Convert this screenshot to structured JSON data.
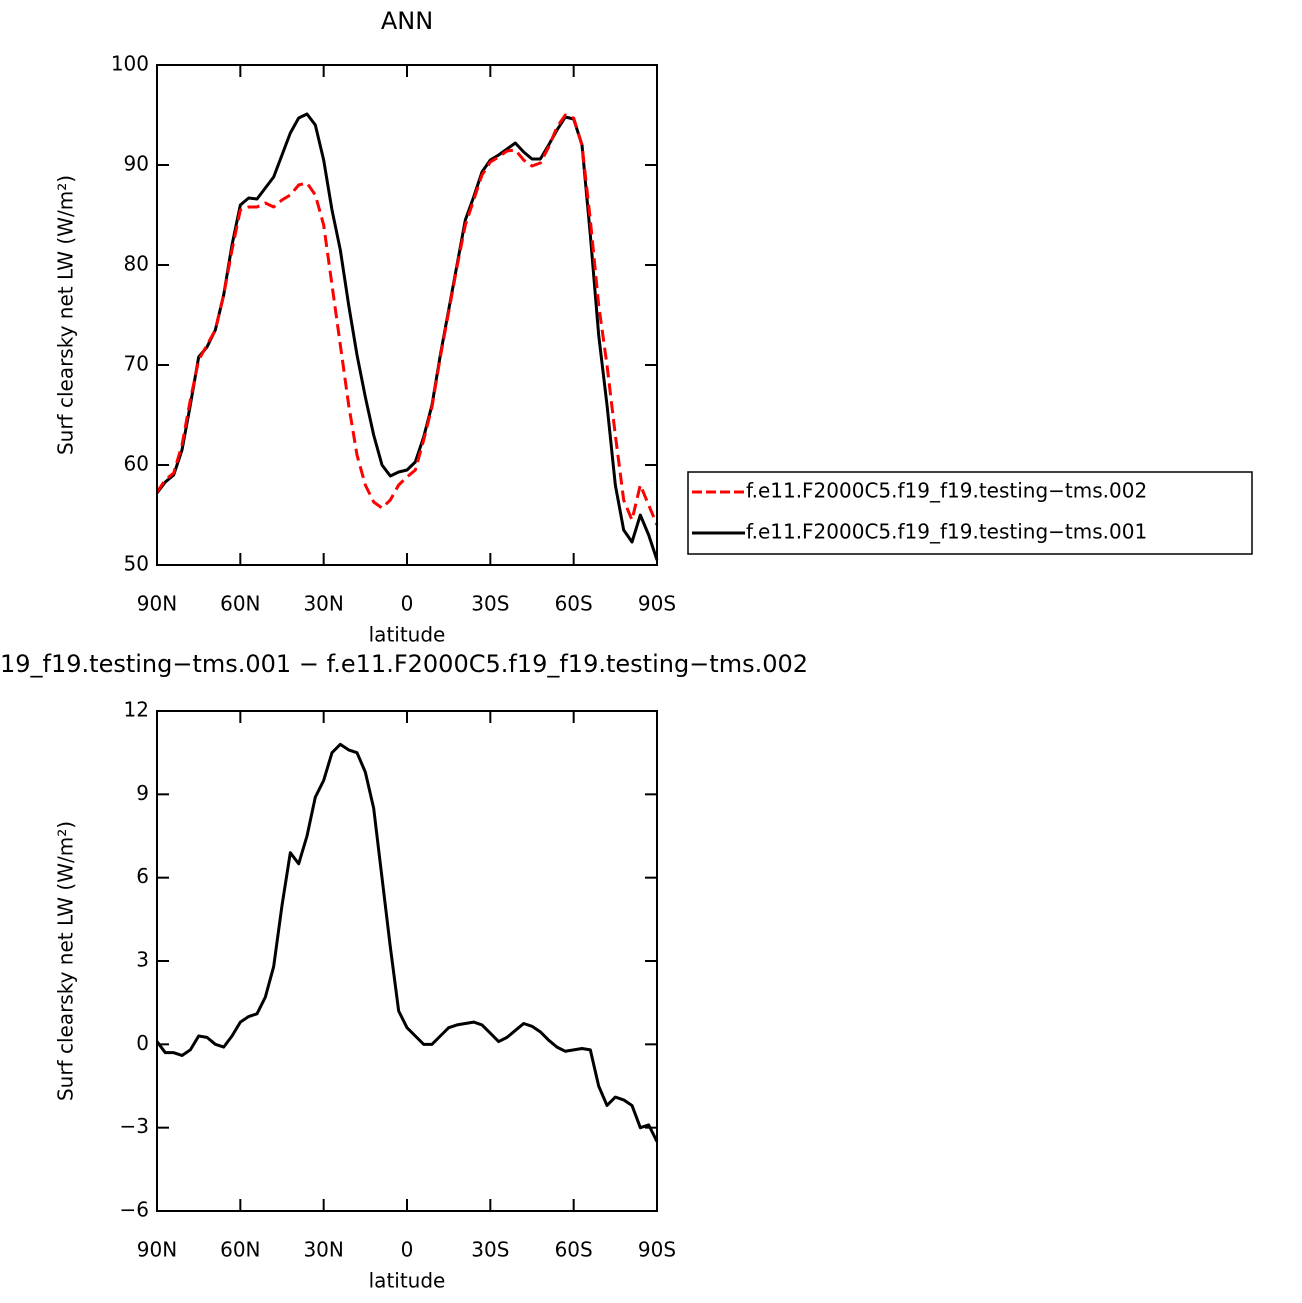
{
  "chart_data": [
    {
      "type": "line",
      "title": "ANN",
      "x": [
        90,
        87,
        84,
        81,
        78,
        75,
        72,
        69,
        66,
        63,
        60,
        57,
        54,
        51,
        48,
        45,
        42,
        39,
        36,
        33,
        30,
        27,
        24,
        21,
        18,
        15,
        12,
        9,
        6,
        3,
        0,
        -3,
        -6,
        -9,
        -12,
        -15,
        -18,
        -21,
        -24,
        -27,
        -30,
        -33,
        -36,
        -39,
        -42,
        -45,
        -48,
        -51,
        -54,
        -57,
        -60,
        -63,
        -66,
        -69,
        -72,
        -75,
        -78,
        -81,
        -84,
        -87,
        -90
      ],
      "series": [
        {
          "name": "f.e11.F2000C5.f19_f19.testing−tms.002",
          "color": "#ff0000",
          "dash": true,
          "values": [
            57.3,
            58.5,
            59.2,
            62,
            66.5,
            70.5,
            72,
            73.5,
            77,
            81.5,
            85.5,
            85.8,
            85.8,
            86.2,
            85.8,
            86.5,
            87,
            88,
            88.2,
            87,
            84,
            78,
            72,
            66,
            61,
            58,
            56.3,
            55.7,
            56.5,
            58,
            58.8,
            59.5,
            62.5,
            65.8,
            70.8,
            75.3,
            79.8,
            84,
            86.5,
            89,
            90.3,
            90.8,
            91.4,
            91.5,
            90.5,
            89.9,
            90.2,
            91.8,
            93.8,
            95,
            94.7,
            92,
            84.5,
            76,
            70,
            63,
            56.5,
            54.5,
            58,
            56,
            54
          ]
        },
        {
          "name": "f.e11.F2000C5.f19_f19.testing−tms.001",
          "color": "#000000",
          "dash": false,
          "values": [
            57.2,
            58.3,
            59,
            61.5,
            66,
            70.8,
            71.8,
            73.5,
            77,
            82,
            86,
            86.7,
            86.6,
            87.7,
            88.8,
            91,
            93.2,
            94.7,
            95.1,
            94,
            90.5,
            85.5,
            81.5,
            76,
            71,
            66.8,
            63,
            60,
            58.9,
            59.3,
            59.5,
            60.3,
            62.8,
            66,
            71,
            75.5,
            80,
            84.5,
            86.8,
            89.3,
            90.5,
            91,
            91.6,
            92.2,
            91.3,
            90.6,
            90.6,
            92,
            93.5,
            94.8,
            94.6,
            92,
            83,
            73,
            66,
            58,
            53.5,
            52.3,
            55,
            53,
            50.5
          ]
        }
      ],
      "xlim": [
        90,
        -90
      ],
      "xticks": [
        {
          "value": 90,
          "label": "90N"
        },
        {
          "value": 60,
          "label": "60N"
        },
        {
          "value": 30,
          "label": "30N"
        },
        0,
        {
          "value": -30,
          "label": "30S"
        },
        {
          "value": -60,
          "label": "60S"
        },
        {
          "value": -90,
          "label": "90S"
        }
      ],
      "ylim": [
        50,
        100
      ],
      "yticks": [
        50,
        60,
        70,
        80,
        90,
        100
      ],
      "x_label": "latitude",
      "y_label": "Surf clearsky net LW (W/m²)",
      "legend": "right"
    },
    {
      "type": "line",
      "title": "19_f19.testing−tms.001 − f.e11.F2000C5.f19_f19.testing−tms.002",
      "x": [
        90,
        87,
        84,
        81,
        78,
        75,
        72,
        69,
        66,
        63,
        60,
        57,
        54,
        51,
        48,
        45,
        42,
        39,
        36,
        33,
        30,
        27,
        24,
        21,
        18,
        15,
        12,
        9,
        6,
        3,
        0,
        -3,
        -6,
        -9,
        -12,
        -15,
        -18,
        -21,
        -24,
        -27,
        -30,
        -33,
        -36,
        -39,
        -42,
        -45,
        -48,
        -51,
        -54,
        -57,
        -60,
        -63,
        -66,
        -69,
        -72,
        -75,
        -78,
        -81,
        -84,
        -87,
        -90
      ],
      "values": [
        0.1,
        -0.3,
        -0.3,
        -0.4,
        -0.2,
        0.3,
        0.25,
        0,
        -0.1,
        0.3,
        0.8,
        1,
        1.1,
        1.7,
        2.8,
        5,
        6.9,
        6.5,
        7.5,
        8.9,
        9.5,
        10.5,
        10.8,
        10.6,
        10.5,
        9.8,
        8.5,
        6,
        3.5,
        1.2,
        0.6,
        0.3,
        0,
        0,
        0.3,
        0.6,
        0.7,
        0.75,
        0.8,
        0.7,
        0.4,
        0.1,
        0.25,
        0.5,
        0.75,
        0.65,
        0.45,
        0.15,
        -0.1,
        -0.25,
        -0.2,
        -0.15,
        -0.2,
        -1.5,
        -2.2,
        -1.9,
        -2,
        -2.2,
        -3,
        -2.9,
        -3.5
      ],
      "color": "#000000",
      "xlim": [
        90,
        -90
      ],
      "xticks": [
        {
          "value": 90,
          "label": "90N"
        },
        {
          "value": 60,
          "label": "60N"
        },
        {
          "value": 30,
          "label": "30N"
        },
        0,
        {
          "value": -30,
          "label": "30S"
        },
        {
          "value": -60,
          "label": "60S"
        },
        {
          "value": -90,
          "label": "90S"
        }
      ],
      "ylim": [
        -6,
        12
      ],
      "yticks": [
        {
          "value": -6,
          "label": "−6"
        },
        {
          "value": -3,
          "label": "−3"
        },
        0,
        3,
        6,
        9,
        12
      ],
      "x_label": "latitude",
      "y_label": "Surf clearsky net LW (W/m²)"
    }
  ]
}
